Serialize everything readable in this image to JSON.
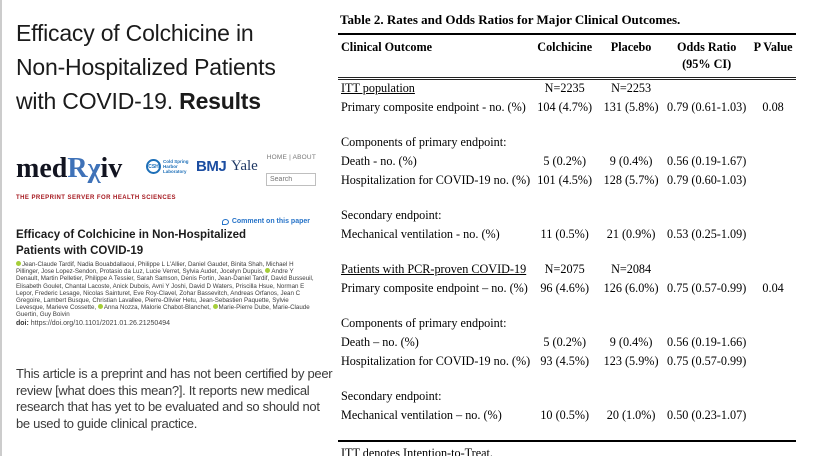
{
  "slide": {
    "title": {
      "line1": "Efficacy of Colchicine in",
      "line2": "Non-Hospitalized Patients",
      "line3_prefix": "with COVID-19. ",
      "line3_bold": "Results"
    },
    "disclaimer": "This article is a preprint and has not been certified by peer review [what does this mean?]. It reports new medical research that has yet to be evaluated and so should not be used to guide clinical practice."
  },
  "medrxiv": {
    "logo": {
      "med": "med",
      "r": "R",
      "chi": "χ",
      "iv": "iv",
      "tagline": "THE PREPRINT SERVER FOR HEALTH SCIENCES"
    },
    "partners": {
      "csh_abbr": "CSH",
      "csh_name": "Cold Spring Harbor Laboratory",
      "bmj": "BMJ",
      "yale": "Yale"
    },
    "nav": "HOME | ABOUT",
    "search_placeholder": "Search",
    "comment_link": "Comment on this paper",
    "paper": {
      "title": "Efficacy of Colchicine in Non-Hospitalized Patients with COVID-19",
      "authors": [
        {
          "orcid": true,
          "text": "Jean-Claude Tardif, Nadia Bouabdallaoui, Philippe L L'Allier, Daniel Gaudet, Binita Shah, Michael H Pillinger, Jose Lopez-Sendon, Protasio da Luz, Lucie Verret, Sylvia Audet, Jocelyn Dupuis, "
        },
        {
          "orcid": true,
          "text": "Andre Y Denault, Martin Pelletier, Philippe A Tessier, Sarah Samson, Denis Fortin, Jean-Daniel Tardif, David Busseuil, Elisabeth Goulet, Chantal Lacoste, Anick Dubois, Avni Y Joshi, David D Waters, Priscilla Hsue, Norman E Lepor, Frederic Lesage, Nicolas Sainturet, Eve Roy-Clavel, Zohar Bassevitch, Andreas Orfanos, Jean C Gregoire, Lambert Busque, Christian Lavallee, Pierre-Olivier Hetu, Jean-Sebastien Paquette, Sylvie Levesque, Marieve Cossette, "
        },
        {
          "orcid": true,
          "text": "Anna Nozza, Malorie Chabot-Blanchet, "
        },
        {
          "orcid": true,
          "text": "Marie-Pierre Dube, Marie-Claude Guertin, Guy Boivin"
        }
      ],
      "doi_label": "doi:",
      "doi_url": "https://doi.org/10.1101/2021.01.26.21250494"
    }
  },
  "table": {
    "title": "Table 2. Rates and Odds Ratios for Major Clinical Outcomes.",
    "headers": {
      "outcome": "Clinical Outcome",
      "colchicine": "Colchicine",
      "placebo": "Placebo",
      "odds_line1": "Odds Ratio",
      "odds_line2": "(95% CI)",
      "pvalue": "P Value"
    },
    "rows": [
      {
        "type": "group",
        "label": "ITT population",
        "colchicine": "N=2235",
        "placebo": "N=2253",
        "or": "",
        "p": ""
      },
      {
        "type": "data",
        "label": "Primary composite endpoint - no. (%)",
        "colchicine": "104 (4.7%)",
        "placebo": "131 (5.8%)",
        "or": "0.79 (0.61-1.03)",
        "p": "0.08"
      },
      {
        "type": "spacer"
      },
      {
        "type": "section",
        "label": "Components of primary endpoint:",
        "colchicine": "",
        "placebo": "",
        "or": "",
        "p": ""
      },
      {
        "type": "data",
        "label": "Death - no. (%)",
        "colchicine": "5 (0.2%)",
        "placebo": "9 (0.4%)",
        "or": "0.56 (0.19-1.67)",
        "p": ""
      },
      {
        "type": "data",
        "label": "Hospitalization for COVID-19 no. (%)",
        "colchicine": "101 (4.5%)",
        "placebo": "128 (5.7%)",
        "or": "0.79 (0.60-1.03)",
        "p": ""
      },
      {
        "type": "spacer"
      },
      {
        "type": "section",
        "label": "Secondary endpoint:",
        "colchicine": "",
        "placebo": "",
        "or": "",
        "p": ""
      },
      {
        "type": "data",
        "label": "Mechanical ventilation - no. (%)",
        "colchicine": "11 (0.5%)",
        "placebo": "21 (0.9%)",
        "or": "0.53 (0.25-1.09)",
        "p": ""
      },
      {
        "type": "spacer"
      },
      {
        "type": "group",
        "label": "Patients with PCR-proven COVID-19",
        "colchicine": "N=2075",
        "placebo": "N=2084",
        "or": "",
        "p": ""
      },
      {
        "type": "data",
        "label": "Primary composite endpoint – no. (%)",
        "colchicine": "96 (4.6%)",
        "placebo": "126 (6.0%)",
        "or": "0.75 (0.57-0.99)",
        "p": "0.04"
      },
      {
        "type": "spacer"
      },
      {
        "type": "section",
        "label": "Components of primary endpoint:",
        "colchicine": "",
        "placebo": "",
        "or": "",
        "p": ""
      },
      {
        "type": "data",
        "label": "Death – no. (%)",
        "colchicine": "5 (0.2%)",
        "placebo": "9 (0.4%)",
        "or": "0.56 (0.19-1.66)",
        "p": ""
      },
      {
        "type": "data",
        "label": "Hospitalization for COVID-19 no. (%)",
        "colchicine": "93 (4.5%)",
        "placebo": "123 (5.9%)",
        "or": "0.75 (0.57-0.99)",
        "p": ""
      },
      {
        "type": "spacer"
      },
      {
        "type": "section",
        "label": "Secondary endpoint:",
        "colchicine": "",
        "placebo": "",
        "or": "",
        "p": ""
      },
      {
        "type": "data",
        "label": "Mechanical ventilation – no. (%)",
        "colchicine": "10 (0.5%)",
        "placebo": "20 (1.0%)",
        "or": "0.50 (0.23-1.07)",
        "p": ""
      },
      {
        "type": "spacer"
      }
    ],
    "footnote": "ITT denotes Intention-to-Treat."
  },
  "colors": {
    "logo_dark": "#121420",
    "logo_blue": "#3f72b8",
    "tagline_red": "#a5171e",
    "link_blue": "#2673c8",
    "orcid_green": "#a6ce39",
    "bmj_blue": "#1b4da1",
    "yale_blue": "#1f3864",
    "csh_blue": "#1d6fb8",
    "text_dark": "#1b1b1b"
  }
}
